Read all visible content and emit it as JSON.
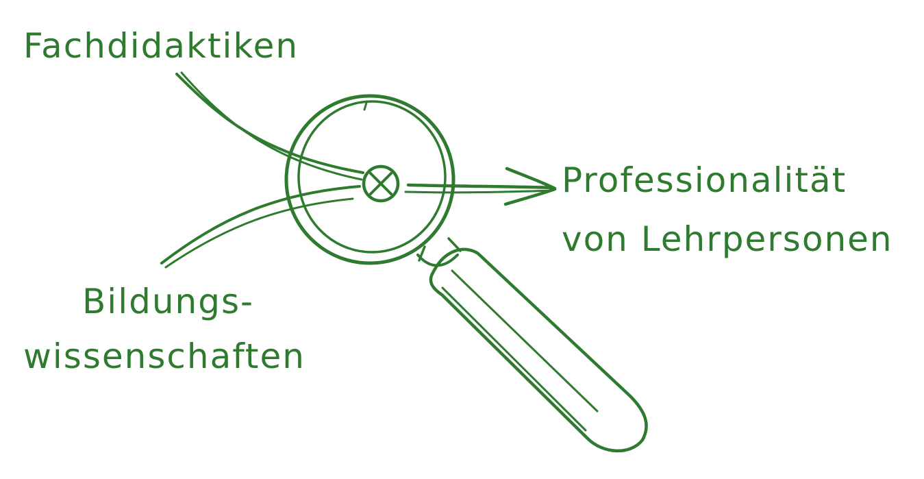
{
  "colors": {
    "ink": "#2e7a2e",
    "background": "#ffffff"
  },
  "labels": {
    "top": "Fachdidaktiken",
    "right_line1": "Professionalität",
    "right_line2": "von Lehrpersonen",
    "left_line1": "Bildungs-",
    "left_line2": "wissenschaften"
  },
  "icons": {
    "lens": "magnifying-glass-icon",
    "focus": "circled-x-icon",
    "arrow": "arrow-right-icon"
  }
}
